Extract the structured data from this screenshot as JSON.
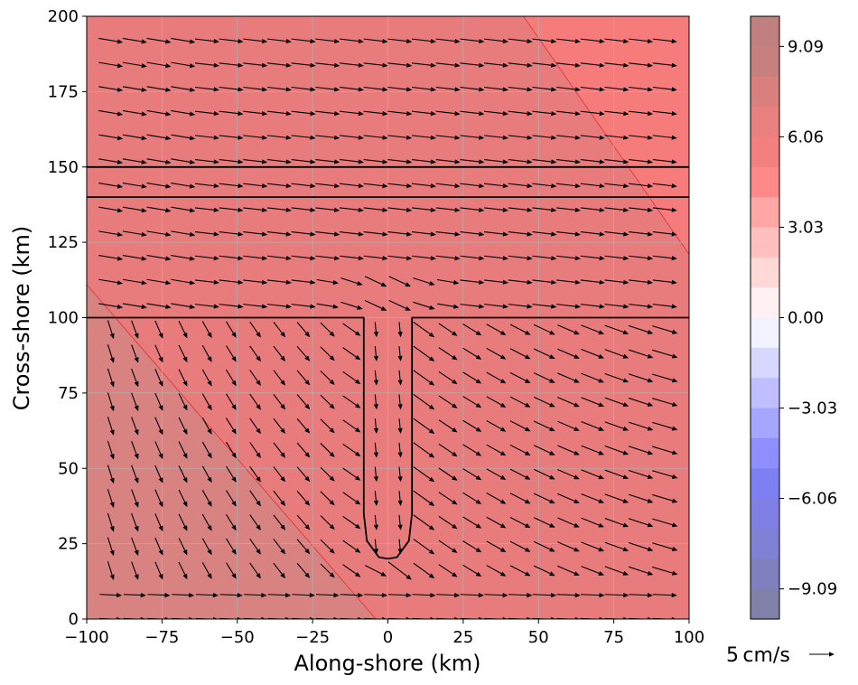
{
  "chart_data": {
    "type": "quiver-contourf",
    "xlabel": "Along-shore (km)",
    "ylabel": "Cross-shore (km)",
    "xlim": [
      -100,
      100
    ],
    "ylim": [
      0,
      200
    ],
    "xticks": [
      -100,
      -75,
      -50,
      -25,
      0,
      25,
      50,
      75,
      100
    ],
    "xtick_labels": [
      "−100",
      "−75",
      "−50",
      "−25",
      "0",
      "25",
      "50",
      "75",
      "100"
    ],
    "yticks": [
      0,
      25,
      50,
      75,
      100,
      125,
      150,
      175,
      200
    ],
    "ytick_labels": [
      "0",
      "25",
      "50",
      "75",
      "100",
      "125",
      "150",
      "175",
      "200"
    ],
    "grid": true,
    "colorbar": {
      "range": [
        -10.1,
        10.1
      ],
      "tick_values": [
        9.09,
        6.06,
        3.03,
        0.0,
        -3.03,
        -6.06,
        -9.09
      ],
      "tick_labels": [
        "9.09",
        "6.06",
        "3.03",
        "0.00",
        "−3.03",
        "−6.06",
        "−9.09"
      ],
      "levels": [
        {
          "from": 9.09,
          "to": 10.1,
          "color": "#c08080"
        },
        {
          "from": 8.08,
          "to": 9.09,
          "color": "#c8807f"
        },
        {
          "from": 7.07,
          "to": 8.08,
          "color": "#d9807f"
        },
        {
          "from": 6.06,
          "to": 7.07,
          "color": "#e98080"
        },
        {
          "from": 5.05,
          "to": 6.06,
          "color": "#f47f7f"
        },
        {
          "from": 4.04,
          "to": 5.05,
          "color": "#ff8888"
        },
        {
          "from": 3.03,
          "to": 4.04,
          "color": "#ffa6a6"
        },
        {
          "from": 2.02,
          "to": 3.03,
          "color": "#ffbfbf"
        },
        {
          "from": 1.01,
          "to": 2.02,
          "color": "#ffd8d8"
        },
        {
          "from": 0.0,
          "to": 1.01,
          "color": "#fff1f1"
        },
        {
          "from": -1.01,
          "to": 0.0,
          "color": "#f1f1ff"
        },
        {
          "from": -2.02,
          "to": -1.01,
          "color": "#d8d8ff"
        },
        {
          "from": -3.03,
          "to": -2.02,
          "color": "#bfbfff"
        },
        {
          "from": -4.04,
          "to": -3.03,
          "color": "#a6a6ff"
        },
        {
          "from": -5.05,
          "to": -4.04,
          "color": "#8e8eff"
        },
        {
          "from": -6.06,
          "to": -5.05,
          "color": "#7f7ff4"
        },
        {
          "from": -7.07,
          "to": -6.06,
          "color": "#8080e4"
        },
        {
          "from": -8.08,
          "to": -7.07,
          "color": "#8080d4"
        },
        {
          "from": -9.09,
          "to": -8.08,
          "color": "#8080bf"
        },
        {
          "from": -10.1,
          "to": -9.09,
          "color": "#8080a8"
        }
      ]
    },
    "field_regions": [
      {
        "name": "main",
        "color": "#e87b7b"
      },
      {
        "name": "upper-right",
        "color": "#f67c7c",
        "boundary": [
          [
            45,
            200
          ],
          [
            100,
            121
          ]
        ]
      },
      {
        "name": "lower-left",
        "color": "#d88282",
        "boundary": [
          [
            -100,
            111
          ],
          [
            -4,
            0
          ]
        ]
      }
    ],
    "contour_lines": [
      {
        "name": "offshore-line-150",
        "points": [
          [
            -100,
            150
          ],
          [
            100,
            150
          ]
        ]
      },
      {
        "name": "offshore-line-140",
        "points": [
          [
            -100,
            140
          ],
          [
            100,
            140
          ]
        ]
      },
      {
        "name": "shelf-break-with-canyon",
        "points": [
          [
            -100,
            100
          ],
          [
            -8,
            100
          ],
          [
            -8,
            35
          ],
          [
            -7,
            26
          ],
          [
            -3,
            20.5
          ],
          [
            0,
            20
          ],
          [
            3,
            20.5
          ],
          [
            7,
            26
          ],
          [
            8,
            35
          ],
          [
            8,
            100
          ],
          [
            100,
            100
          ]
        ]
      }
    ],
    "quiver": {
      "units": "cm/s",
      "x": [
        -92,
        -84,
        -76,
        -68,
        -60,
        -52,
        -44,
        -36,
        -28,
        -20,
        -12,
        -4,
        4,
        12,
        20,
        28,
        36,
        44,
        52,
        60,
        68,
        76,
        84,
        92
      ],
      "y": [
        192,
        184,
        176,
        168,
        160,
        152,
        144,
        136,
        128,
        120,
        112,
        104,
        96,
        88,
        80,
        72,
        64,
        56,
        48,
        40,
        32,
        24,
        16,
        8,
        0
      ],
      "field_model": "alongshore flow ~5 cm/s, weak offshore; onshore of y=100 the flow turns across the shelf and is steered around the canyon near x=0",
      "key": {
        "value": 5,
        "label": "5 cm/s"
      }
    }
  }
}
